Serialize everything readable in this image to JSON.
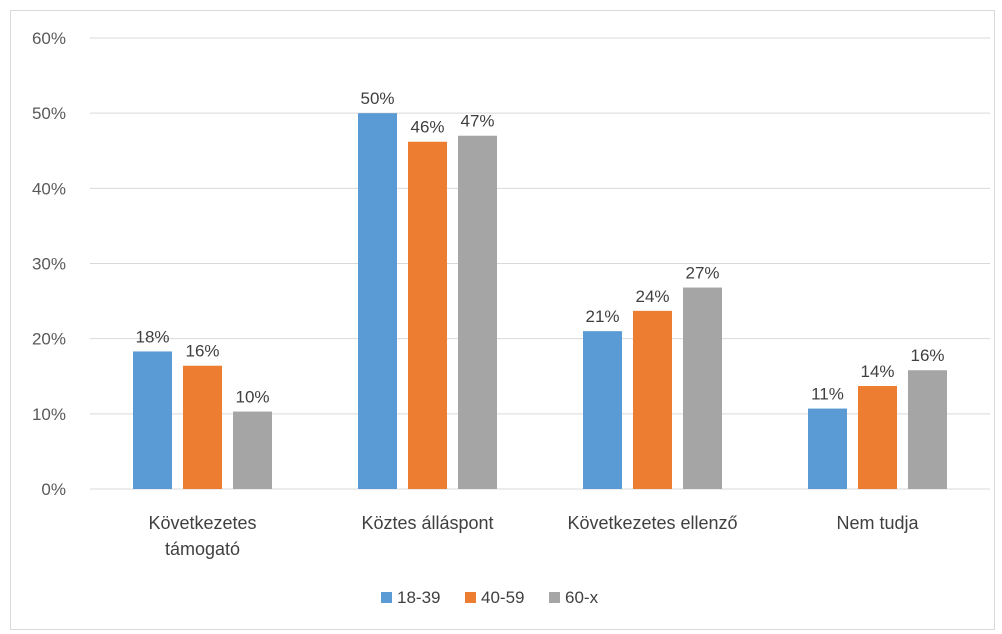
{
  "chart_data": {
    "type": "bar",
    "title": "",
    "xlabel": "",
    "ylabel": "",
    "ylim": [
      0,
      60
    ],
    "y_ticks": [
      "0%",
      "10%",
      "20%",
      "30%",
      "40%",
      "50%",
      "60%"
    ],
    "grid": "horizontal",
    "legend_position": "bottom",
    "categories": [
      [
        "Következetes",
        "támogató"
      ],
      [
        "Köztes álláspont"
      ],
      [
        "Következetes ellenző"
      ],
      [
        "Nem tudja"
      ]
    ],
    "series": [
      {
        "name": "18-39",
        "color": "#5b9bd5",
        "values": [
          18.3,
          50.0,
          21.0,
          10.7
        ],
        "labels": [
          "18%",
          "50%",
          "21%",
          "11%"
        ]
      },
      {
        "name": "40-59",
        "color": "#ed7d31",
        "values": [
          16.4,
          46.2,
          23.7,
          13.7
        ],
        "labels": [
          "16%",
          "46%",
          "24%",
          "14%"
        ]
      },
      {
        "name": "60-x",
        "color": "#a5a5a5",
        "values": [
          10.3,
          47.0,
          26.8,
          15.8
        ],
        "labels": [
          "10%",
          "47%",
          "27%",
          "16%"
        ]
      }
    ]
  }
}
